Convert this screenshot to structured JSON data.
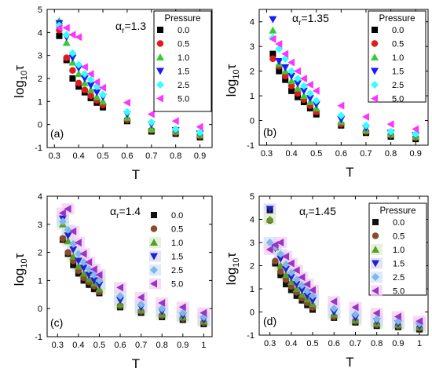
{
  "figure": {
    "legend_title": "Pressure",
    "xlabel": "T",
    "ylabel_base": "log",
    "ylabel_sub": "10",
    "ylabel_var": "τ",
    "alpha_symbol": "α",
    "alpha_sub": "r"
  },
  "series_styles": [
    {
      "name": "0.0",
      "marker": "square",
      "color": "#000000"
    },
    {
      "name": "0.5",
      "marker": "circle",
      "color": "#e31a1c"
    },
    {
      "name": "1.0",
      "marker": "triangle-up",
      "color": "#33cc33"
    },
    {
      "name": "1.5",
      "marker": "triangle-down",
      "color": "#1a1aff"
    },
    {
      "name": "2.5",
      "marker": "diamond",
      "color": "#33ffff"
    },
    {
      "name": "5.0",
      "marker": "triangle-left",
      "color": "#ff33ff"
    }
  ],
  "chart_data": [
    {
      "type": "scatter",
      "panel_label": "(a)",
      "alpha_value": "=1.3",
      "xlabel": "T",
      "ylabel": "log10τ",
      "xlim": [
        0.27,
        0.95
      ],
      "ylim": [
        -1,
        5
      ],
      "xticks": [
        "0.3",
        "0.4",
        "0.5",
        "0.6",
        "0.7",
        "0.8",
        "0.9"
      ],
      "yticks": [
        "-1",
        "0",
        "1",
        "2",
        "3",
        "4",
        "5"
      ],
      "legend_position": "top-right",
      "style": "solid",
      "x": [
        0.32,
        0.35,
        0.375,
        0.4,
        0.425,
        0.45,
        0.475,
        0.5,
        0.6,
        0.7,
        0.8,
        0.9
      ],
      "series": [
        {
          "name": "0.0",
          "values": [
            3.85,
            2.8,
            2.0,
            1.65,
            1.4,
            1.15,
            0.95,
            0.75,
            0.15,
            -0.3,
            -0.4,
            -0.55
          ]
        },
        {
          "name": "0.5",
          "values": [
            4.1,
            2.9,
            2.35,
            1.8,
            1.5,
            1.25,
            1.05,
            0.85,
            0.2,
            -0.25,
            -0.35,
            -0.5
          ]
        },
        {
          "name": "1.0",
          "values": [
            4.5,
            3.55,
            2.7,
            2.2,
            1.8,
            1.5,
            1.2,
            1.0,
            0.3,
            -0.2,
            -0.3,
            -0.45
          ]
        },
        {
          "name": "1.5",
          "values": [
            4.4,
            3.8,
            2.9,
            2.45,
            2.0,
            1.7,
            1.4,
            1.2,
            0.45,
            0.0,
            -0.25,
            -0.4
          ]
        },
        {
          "name": "2.5",
          "values": [
            4.3,
            3.9,
            3.1,
            2.6,
            2.2,
            1.95,
            1.65,
            1.3,
            0.55,
            0.1,
            -0.2,
            -0.35
          ]
        },
        {
          "name": "5.0",
          "values": [
            4.2,
            4.2,
            3.9,
            3.8,
            2.5,
            2.2,
            1.85,
            1.6,
            0.95,
            0.45,
            0.15,
            -0.1
          ]
        }
      ]
    },
    {
      "type": "scatter",
      "panel_label": "(b)",
      "alpha_value": "=1.35",
      "xlabel": "T",
      "ylabel": "log10τ",
      "xlim": [
        0.27,
        0.95
      ],
      "ylim": [
        -1,
        4.5
      ],
      "xticks": [
        "0.3",
        "0.4",
        "0.5",
        "0.6",
        "0.7",
        "0.8",
        "0.9"
      ],
      "yticks": [
        "-1",
        "0",
        "1",
        "2",
        "3",
        "4"
      ],
      "legend_position": "top-right",
      "style": "solid",
      "x": [
        0.325,
        0.35,
        0.375,
        0.4,
        0.425,
        0.45,
        0.475,
        0.5,
        0.6,
        0.7,
        0.8,
        0.9
      ],
      "series": [
        {
          "name": "0.0",
          "values": [
            2.7,
            2.0,
            1.65,
            1.2,
            0.95,
            0.75,
            0.5,
            0.25,
            -0.2,
            -0.5,
            -0.65,
            -0.75
          ]
        },
        {
          "name": "0.5",
          "values": [
            2.5,
            2.2,
            1.8,
            1.4,
            1.1,
            0.85,
            0.6,
            0.35,
            -0.15,
            -0.45,
            -0.6,
            -0.7
          ]
        },
        {
          "name": "1.0",
          "values": [
            3.65,
            2.3,
            2.0,
            1.6,
            1.3,
            1.0,
            0.75,
            0.5,
            -0.05,
            -0.4,
            -0.55,
            -0.65
          ]
        },
        {
          "name": "1.5",
          "values": [
            4.1,
            2.4,
            2.15,
            1.8,
            1.5,
            1.2,
            0.9,
            0.65,
            0.05,
            -0.3,
            -0.5,
            -0.6
          ]
        },
        {
          "name": "2.5",
          "values": [
            3.35,
            2.9,
            2.5,
            2.0,
            1.7,
            1.4,
            1.1,
            0.8,
            0.2,
            -0.2,
            -0.45,
            -0.55
          ]
        },
        {
          "name": "5.0",
          "values": [
            3.3,
            3.1,
            2.7,
            2.35,
            2.0,
            1.7,
            1.45,
            1.2,
            0.6,
            0.15,
            -0.15,
            -0.35
          ]
        }
      ]
    },
    {
      "type": "scatter",
      "panel_label": "(c)",
      "alpha_value": "=1.4",
      "xlabel": "T",
      "ylabel": "log10τ",
      "xlim": [
        0.25,
        1.04
      ],
      "ylim": [
        -1,
        4
      ],
      "xticks": [
        "0.3",
        "0.4",
        "0.5",
        "0.6",
        "0.7",
        "0.8",
        "0.9",
        "1"
      ],
      "yticks": [
        "-1",
        "0",
        "1",
        "2",
        "3",
        "4"
      ],
      "legend_position": "top-right",
      "style": "shaded",
      "x": [
        0.325,
        0.35,
        0.375,
        0.4,
        0.425,
        0.45,
        0.475,
        0.5,
        0.6,
        0.7,
        0.8,
        0.9,
        1.0
      ],
      "series": [
        {
          "name": "0.0",
          "values": [
            2.45,
            1.95,
            1.55,
            1.25,
            1.0,
            0.85,
            0.7,
            0.55,
            0.05,
            -0.15,
            -0.3,
            -0.4,
            -0.55
          ]
        },
        {
          "name": "0.5",
          "values": [
            2.5,
            2.0,
            1.7,
            1.35,
            1.1,
            0.95,
            0.8,
            0.6,
            0.1,
            -0.1,
            -0.25,
            -0.35,
            -0.5
          ]
        },
        {
          "name": "1.0",
          "values": [
            3.0,
            2.4,
            1.85,
            1.5,
            1.25,
            1.05,
            0.9,
            0.7,
            0.15,
            -0.05,
            -0.2,
            -0.3,
            -0.45
          ]
        },
        {
          "name": "1.5",
          "values": [
            3.2,
            2.6,
            2.1,
            1.7,
            1.45,
            1.2,
            1.0,
            0.85,
            0.3,
            0.05,
            -0.1,
            -0.25,
            -0.4
          ]
        },
        {
          "name": "2.5",
          "values": [
            3.1,
            2.8,
            2.3,
            1.95,
            1.65,
            1.4,
            1.2,
            1.0,
            0.45,
            0.15,
            0.0,
            -0.15,
            -0.3
          ]
        },
        {
          "name": "5.0",
          "values": [
            3.4,
            3.55,
            2.75,
            2.35,
            1.95,
            1.65,
            1.4,
            1.2,
            0.75,
            0.4,
            0.2,
            0.05,
            -0.15
          ]
        }
      ]
    },
    {
      "type": "scatter",
      "panel_label": "(d)",
      "alpha_value": "=1.45",
      "xlabel": "T",
      "ylabel": "log10τ",
      "xlim": [
        0.25,
        1.04
      ],
      "ylim": [
        -1,
        5
      ],
      "xticks": [
        "0.3",
        "0.4",
        "0.5",
        "0.6",
        "0.7",
        "0.8",
        "0.9",
        "1"
      ],
      "yticks": [
        "-1",
        "0",
        "1",
        "2",
        "3",
        "4",
        "5"
      ],
      "legend_position": "top-right",
      "style": "shaded",
      "x": [
        0.3,
        0.325,
        0.35,
        0.375,
        0.4,
        0.425,
        0.45,
        0.475,
        0.5,
        0.6,
        0.7,
        0.8,
        0.9,
        1.0
      ],
      "series": [
        {
          "name": "0.0",
          "values": [
            4.4,
            2.1,
            1.6,
            1.2,
            0.95,
            0.7,
            0.5,
            0.3,
            0.1,
            -0.25,
            -0.45,
            -0.6,
            -0.65,
            -0.75
          ]
        },
        {
          "name": "0.5",
          "values": [
            3.95,
            2.2,
            1.75,
            1.4,
            1.1,
            0.85,
            0.6,
            0.4,
            0.2,
            -0.2,
            -0.4,
            -0.55,
            -0.6,
            -0.7
          ]
        },
        {
          "name": "1.0",
          "values": [
            4.0,
            2.8,
            2.0,
            1.6,
            1.3,
            1.0,
            0.75,
            0.55,
            0.35,
            -0.1,
            -0.35,
            -0.5,
            -0.55,
            -0.65
          ]
        },
        {
          "name": "1.5",
          "values": [
            4.45,
            2.75,
            2.3,
            1.85,
            1.5,
            1.2,
            0.95,
            0.7,
            0.5,
            0.0,
            -0.25,
            -0.4,
            -0.5,
            -0.6
          ]
        },
        {
          "name": "2.5",
          "values": [
            3.0,
            2.8,
            2.5,
            2.05,
            1.7,
            1.4,
            1.15,
            0.9,
            0.7,
            0.15,
            -0.1,
            -0.3,
            -0.4,
            -0.5
          ]
        },
        {
          "name": "5.0",
          "values": [
            2.7,
            2.9,
            3.0,
            2.4,
            2.1,
            1.8,
            1.5,
            1.2,
            0.95,
            0.45,
            0.2,
            -0.05,
            -0.2,
            -0.4
          ]
        }
      ]
    }
  ]
}
